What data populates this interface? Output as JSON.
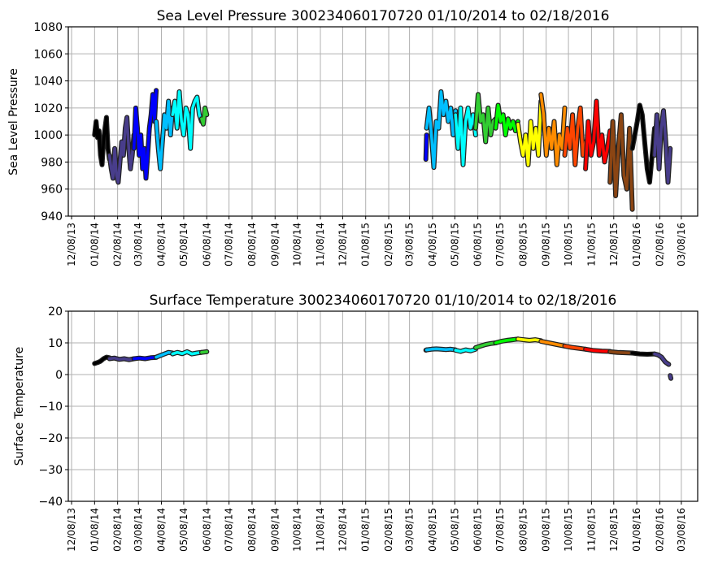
{
  "chart_data": [
    {
      "type": "line",
      "title": "Sea Level Pressure 300234060170720  01/10/2014 to 02/18/2016",
      "xlabel": "",
      "ylabel": "Sea Level Pressure",
      "ylim": [
        940,
        1080
      ],
      "yticks": [
        940,
        960,
        980,
        1000,
        1020,
        1040,
        1060,
        1080
      ],
      "xticks": [
        "12/08/13",
        "01/08/14",
        "02/08/14",
        "03/08/14",
        "04/08/14",
        "05/08/14",
        "06/08/14",
        "07/08/14",
        "08/08/14",
        "09/08/14",
        "10/08/14",
        "11/08/14",
        "12/08/14",
        "01/08/15",
        "02/08/15",
        "03/08/15",
        "04/08/15",
        "05/08/15",
        "06/08/15",
        "07/08/15",
        "08/08/15",
        "09/08/15",
        "10/08/15",
        "11/08/15",
        "12/08/15",
        "01/08/16",
        "02/08/16",
        "03/08/16"
      ],
      "xlim_days_since_first_tick": [
        -4.4,
        843
      ],
      "grid": true,
      "segments": [
        {
          "color": "#000000",
          "days": [
            31,
            51
          ],
          "values": [
            1000,
            1010,
            998,
            1003,
            985,
            978,
            995,
            1005,
            1013,
            990,
            982
          ]
        },
        {
          "color": "#483d8b",
          "days": [
            51,
            84
          ],
          "values": [
            985,
            975,
            968,
            990,
            970,
            965,
            980,
            995,
            985,
            1005,
            1013,
            990,
            975,
            985,
            1000
          ]
        },
        {
          "color": "#0000ff",
          "days": [
            84,
            114
          ],
          "values": [
            990,
            1020,
            1005,
            985,
            1000,
            975,
            990,
            968,
            985,
            1005,
            1015,
            1030,
            1010,
            1033
          ]
        },
        {
          "color": "#00bfff",
          "days": [
            114,
            136
          ],
          "values": [
            1010,
            990,
            975,
            995,
            1015,
            1005,
            1025,
            1000,
            1020
          ]
        },
        {
          "color": "#00ffff",
          "days": [
            136,
            175
          ],
          "values": [
            1015,
            1025,
            1005,
            1032,
            1010,
            1000,
            1020,
            1015,
            990,
            1020,
            1025,
            1028,
            1015,
            1010
          ]
        },
        {
          "color": "#32cd32",
          "days": [
            175,
            182
          ],
          "values": [
            1012,
            1008,
            1020,
            1015
          ]
        },
        {
          "color": "#0000ff",
          "days": [
            477,
            478
          ],
          "values": [
            982,
            1000
          ]
        },
        {
          "color": "#00bfff",
          "days": [
            478,
            517
          ],
          "values": [
            1005,
            1020,
            1000,
            976,
            1010,
            1005,
            1032,
            1015,
            1025,
            1010,
            1020,
            1000,
            1018
          ]
        },
        {
          "color": "#00ffff",
          "days": [
            517,
            544
          ],
          "values": [
            1015,
            990,
            1020,
            978,
            1010,
            1020,
            1005,
            1015,
            1000
          ]
        },
        {
          "color": "#32cd32",
          "days": [
            544,
            571
          ],
          "values": [
            1005,
            1030,
            1010,
            1015,
            995,
            1020,
            1000,
            1010,
            1012
          ]
        },
        {
          "color": "#00ff00",
          "days": [
            571,
            601
          ],
          "values": [
            1005,
            1022,
            1010,
            1015,
            1000,
            1012,
            1005,
            1010,
            1003,
            1010
          ]
        },
        {
          "color": "#ffff00",
          "days": [
            601,
            632
          ],
          "values": [
            1008,
            995,
            985,
            1000,
            978,
            1010,
            990,
            1005,
            985,
            1025
          ]
        },
        {
          "color": "#ff8c00",
          "days": [
            632,
            664
          ],
          "values": [
            1030,
            1015,
            985,
            1005,
            990,
            1010,
            978,
            1000,
            990,
            1020
          ]
        },
        {
          "color": "#ff4500",
          "days": [
            664,
            692
          ],
          "values": [
            985,
            1005,
            990,
            1015,
            978,
            1005,
            1020,
            985,
            995
          ]
        },
        {
          "color": "#ff0000",
          "days": [
            692,
            725
          ],
          "values": [
            975,
            1010,
            985,
            995,
            1025,
            985,
            1000,
            980,
            990,
            1003
          ]
        },
        {
          "color": "#8b4513",
          "days": [
            725,
            755
          ],
          "values": [
            965,
            1010,
            955,
            990,
            1015,
            970,
            960,
            1005,
            945
          ]
        },
        {
          "color": "#000000",
          "days": [
            755,
            785
          ],
          "values": [
            990,
            1000,
            1010,
            1022,
            1015,
            995,
            975,
            965,
            985,
            1005
          ]
        },
        {
          "color": "#483d8b",
          "days": [
            785,
            806
          ],
          "values": [
            985,
            1015,
            975,
            1005,
            1018,
            995,
            965,
            990
          ]
        }
      ]
    },
    {
      "type": "line",
      "title": "Surface Temperature 300234060170720  01/10/2014 to 02/18/2016",
      "xlabel": "",
      "ylabel": "Surface Temperature",
      "ylim": [
        -40,
        20
      ],
      "yticks": [
        -40,
        -30,
        -20,
        -10,
        0,
        10,
        20
      ],
      "xticks": [
        "12/08/13",
        "01/08/14",
        "02/08/14",
        "03/08/14",
        "04/08/14",
        "05/08/14",
        "06/08/14",
        "07/08/14",
        "08/08/14",
        "09/08/14",
        "10/08/14",
        "11/08/14",
        "12/08/14",
        "01/08/15",
        "02/08/15",
        "03/08/15",
        "04/08/15",
        "05/08/15",
        "06/08/15",
        "07/08/15",
        "08/08/15",
        "09/08/15",
        "10/08/15",
        "11/08/15",
        "12/08/15",
        "01/08/16",
        "02/08/16",
        "03/08/16"
      ],
      "xlim_days_since_first_tick": [
        -4.4,
        843
      ],
      "grid": true,
      "segments": [
        {
          "color": "#000000",
          "days": [
            31,
            51
          ],
          "values": [
            3.5,
            3.8,
            4.2,
            5,
            5.5,
            5.3
          ]
        },
        {
          "color": "#483d8b",
          "days": [
            51,
            84
          ],
          "values": [
            5,
            5.2,
            4.8,
            5,
            4.7,
            5
          ]
        },
        {
          "color": "#0000ff",
          "days": [
            84,
            114
          ],
          "values": [
            5,
            5.2,
            5,
            5.3,
            5.4
          ]
        },
        {
          "color": "#00bfff",
          "days": [
            114,
            136
          ],
          "values": [
            5.5,
            6,
            6.5,
            7,
            6.8
          ]
        },
        {
          "color": "#00ffff",
          "days": [
            136,
            175
          ],
          "values": [
            6.5,
            7,
            6.6,
            7.2,
            6.5,
            6.8,
            7
          ]
        },
        {
          "color": "#32cd32",
          "days": [
            175,
            182
          ],
          "values": [
            7,
            7.2
          ]
        },
        {
          "color": "#0000ff",
          "days": [
            477,
            478
          ],
          "values": [
            7.7,
            7.8
          ]
        },
        {
          "color": "#00bfff",
          "days": [
            478,
            517
          ],
          "values": [
            7.8,
            8,
            8.1,
            8,
            7.9,
            8,
            7.8
          ]
        },
        {
          "color": "#00ffff",
          "days": [
            517,
            544
          ],
          "values": [
            7.7,
            7.3,
            7.8,
            7.5,
            8
          ]
        },
        {
          "color": "#32cd32",
          "days": [
            544,
            571
          ],
          "values": [
            8.5,
            9,
            9.5,
            9.8,
            10
          ]
        },
        {
          "color": "#00ff00",
          "days": [
            571,
            601
          ],
          "values": [
            10,
            10.5,
            10.8,
            11,
            11.2
          ]
        },
        {
          "color": "#ffff00",
          "days": [
            601,
            632
          ],
          "values": [
            11.2,
            11,
            10.8,
            11,
            10.7
          ]
        },
        {
          "color": "#ff8c00",
          "days": [
            632,
            664
          ],
          "values": [
            10.5,
            10,
            9.5,
            9
          ]
        },
        {
          "color": "#ff4500",
          "days": [
            664,
            692
          ],
          "values": [
            9,
            8.6,
            8.3,
            8
          ]
        },
        {
          "color": "#ff0000",
          "days": [
            692,
            725
          ],
          "values": [
            8,
            7.6,
            7.4,
            7.3
          ]
        },
        {
          "color": "#8b4513",
          "days": [
            725,
            755
          ],
          "values": [
            7.2,
            7,
            6.9,
            6.8
          ]
        },
        {
          "color": "#000000",
          "days": [
            755,
            785
          ],
          "values": [
            6.8,
            6.5,
            6.4,
            6.5
          ]
        },
        {
          "color": "#483d8b",
          "days": [
            785,
            804
          ],
          "values": [
            6.5,
            6.2,
            5.5,
            4,
            3.2
          ]
        },
        {
          "color": "#483d8b",
          "days": [
            806,
            807
          ],
          "values": [
            -0.3,
            -1.2
          ]
        }
      ]
    }
  ]
}
